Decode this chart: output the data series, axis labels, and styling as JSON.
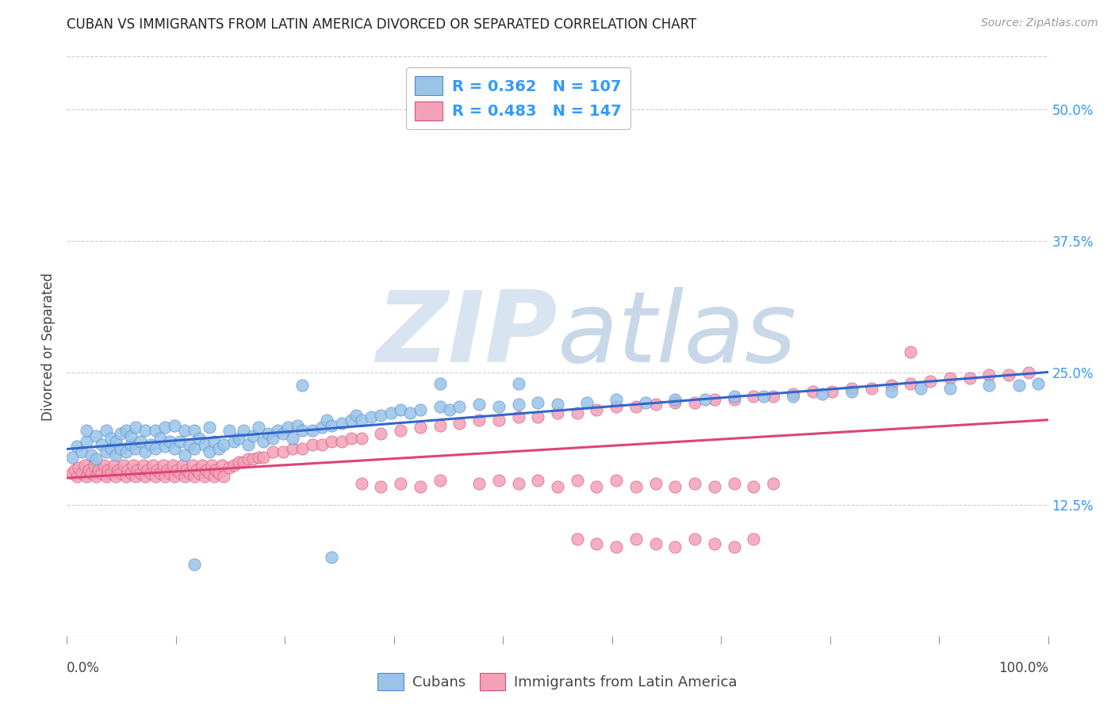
{
  "title": "CUBAN VS IMMIGRANTS FROM LATIN AMERICA DIVORCED OR SEPARATED CORRELATION CHART",
  "source": "Source: ZipAtlas.com",
  "ylabel": "Divorced or Separated",
  "xlim": [
    0.0,
    1.0
  ],
  "ylim": [
    0.0,
    0.55
  ],
  "yticks": [
    0.125,
    0.25,
    0.375,
    0.5
  ],
  "ytick_labels": [
    "12.5%",
    "25.0%",
    "37.5%",
    "50.0%"
  ],
  "legend_entry_blue": "R = 0.362   N = 107",
  "legend_entry_pink": "R = 0.483   N = 147",
  "legend_R_color": "#3399ff",
  "cubans_color": "#99c4e8",
  "cubans_edge": "#5588cc",
  "latin_color": "#f4a0b8",
  "latin_edge": "#cc5577",
  "trendline_blue": "#3366cc",
  "trendline_pink": "#dd4477",
  "watermark_zip": "ZIP",
  "watermark_atlas": "atlas",
  "watermark_color_zip": "#d8e4f0",
  "watermark_color_atlas": "#c8d8e8",
  "background_color": "#ffffff",
  "grid_color": "#cccccc",
  "title_color": "#222222",
  "source_color": "#999999",
  "ytick_color": "#3399ff",
  "label_color": "#444444",
  "bottom_tick_color": "#999999",
  "cubans_x": [
    0.005,
    0.01,
    0.015,
    0.02,
    0.02,
    0.025,
    0.03,
    0.03,
    0.035,
    0.04,
    0.04,
    0.045,
    0.045,
    0.05,
    0.05,
    0.055,
    0.055,
    0.06,
    0.06,
    0.065,
    0.065,
    0.07,
    0.07,
    0.075,
    0.08,
    0.08,
    0.085,
    0.09,
    0.09,
    0.095,
    0.1,
    0.1,
    0.105,
    0.11,
    0.11,
    0.115,
    0.12,
    0.12,
    0.125,
    0.13,
    0.13,
    0.135,
    0.14,
    0.145,
    0.145,
    0.15,
    0.155,
    0.16,
    0.165,
    0.17,
    0.175,
    0.18,
    0.185,
    0.19,
    0.195,
    0.2,
    0.205,
    0.21,
    0.215,
    0.22,
    0.225,
    0.23,
    0.235,
    0.24,
    0.25,
    0.26,
    0.265,
    0.27,
    0.28,
    0.29,
    0.295,
    0.3,
    0.31,
    0.32,
    0.33,
    0.34,
    0.35,
    0.36,
    0.38,
    0.39,
    0.4,
    0.42,
    0.44,
    0.46,
    0.48,
    0.5,
    0.53,
    0.56,
    0.59,
    0.62,
    0.65,
    0.68,
    0.71,
    0.74,
    0.77,
    0.8,
    0.84,
    0.87,
    0.9,
    0.94,
    0.97,
    0.99,
    0.13,
    0.24,
    0.27,
    0.38,
    0.46
  ],
  "cubans_y": [
    0.17,
    0.18,
    0.175,
    0.185,
    0.195,
    0.172,
    0.168,
    0.19,
    0.182,
    0.175,
    0.195,
    0.178,
    0.188,
    0.172,
    0.185,
    0.178,
    0.192,
    0.175,
    0.195,
    0.182,
    0.19,
    0.178,
    0.198,
    0.185,
    0.175,
    0.195,
    0.182,
    0.178,
    0.195,
    0.188,
    0.18,
    0.198,
    0.185,
    0.178,
    0.2,
    0.185,
    0.172,
    0.195,
    0.182,
    0.178,
    0.195,
    0.188,
    0.182,
    0.175,
    0.198,
    0.185,
    0.178,
    0.182,
    0.195,
    0.185,
    0.188,
    0.195,
    0.182,
    0.19,
    0.198,
    0.185,
    0.192,
    0.188,
    0.195,
    0.192,
    0.198,
    0.188,
    0.2,
    0.195,
    0.195,
    0.198,
    0.205,
    0.2,
    0.202,
    0.205,
    0.21,
    0.205,
    0.208,
    0.21,
    0.212,
    0.215,
    0.212,
    0.215,
    0.218,
    0.215,
    0.218,
    0.22,
    0.218,
    0.22,
    0.222,
    0.22,
    0.222,
    0.225,
    0.222,
    0.225,
    0.225,
    0.228,
    0.228,
    0.228,
    0.23,
    0.232,
    0.232,
    0.235,
    0.235,
    0.238,
    0.238,
    0.24,
    0.068,
    0.238,
    0.075,
    0.24,
    0.24
  ],
  "latin_x": [
    0.005,
    0.008,
    0.01,
    0.012,
    0.015,
    0.018,
    0.02,
    0.022,
    0.025,
    0.028,
    0.03,
    0.032,
    0.035,
    0.038,
    0.04,
    0.042,
    0.045,
    0.048,
    0.05,
    0.052,
    0.055,
    0.058,
    0.06,
    0.062,
    0.065,
    0.068,
    0.07,
    0.072,
    0.075,
    0.078,
    0.08,
    0.082,
    0.085,
    0.088,
    0.09,
    0.092,
    0.095,
    0.098,
    0.1,
    0.102,
    0.105,
    0.108,
    0.11,
    0.112,
    0.115,
    0.118,
    0.12,
    0.122,
    0.125,
    0.128,
    0.13,
    0.132,
    0.135,
    0.138,
    0.14,
    0.142,
    0.145,
    0.148,
    0.15,
    0.152,
    0.155,
    0.158,
    0.16,
    0.165,
    0.17,
    0.175,
    0.18,
    0.185,
    0.19,
    0.195,
    0.2,
    0.21,
    0.22,
    0.23,
    0.24,
    0.25,
    0.26,
    0.27,
    0.28,
    0.29,
    0.3,
    0.32,
    0.34,
    0.36,
    0.38,
    0.4,
    0.42,
    0.44,
    0.46,
    0.48,
    0.5,
    0.52,
    0.54,
    0.56,
    0.58,
    0.6,
    0.62,
    0.64,
    0.66,
    0.68,
    0.7,
    0.72,
    0.74,
    0.76,
    0.78,
    0.8,
    0.82,
    0.84,
    0.86,
    0.88,
    0.9,
    0.92,
    0.94,
    0.96,
    0.98,
    0.3,
    0.32,
    0.34,
    0.36,
    0.38,
    0.42,
    0.44,
    0.46,
    0.48,
    0.5,
    0.52,
    0.54,
    0.56,
    0.58,
    0.6,
    0.62,
    0.64,
    0.66,
    0.68,
    0.7,
    0.72,
    0.52,
    0.54,
    0.56,
    0.58,
    0.6,
    0.62,
    0.64,
    0.66,
    0.68,
    0.7,
    0.86
  ],
  "latin_y": [
    0.155,
    0.158,
    0.152,
    0.16,
    0.155,
    0.162,
    0.152,
    0.158,
    0.155,
    0.162,
    0.152,
    0.158,
    0.155,
    0.162,
    0.152,
    0.158,
    0.155,
    0.162,
    0.152,
    0.158,
    0.155,
    0.162,
    0.152,
    0.158,
    0.155,
    0.162,
    0.152,
    0.158,
    0.155,
    0.162,
    0.152,
    0.158,
    0.155,
    0.162,
    0.152,
    0.158,
    0.155,
    0.162,
    0.152,
    0.158,
    0.155,
    0.162,
    0.152,
    0.158,
    0.155,
    0.162,
    0.152,
    0.158,
    0.155,
    0.162,
    0.152,
    0.158,
    0.155,
    0.162,
    0.152,
    0.158,
    0.155,
    0.162,
    0.152,
    0.158,
    0.155,
    0.162,
    0.152,
    0.16,
    0.162,
    0.165,
    0.165,
    0.168,
    0.168,
    0.17,
    0.17,
    0.175,
    0.175,
    0.178,
    0.178,
    0.182,
    0.182,
    0.185,
    0.185,
    0.188,
    0.188,
    0.192,
    0.195,
    0.198,
    0.2,
    0.202,
    0.205,
    0.205,
    0.208,
    0.208,
    0.212,
    0.212,
    0.215,
    0.218,
    0.218,
    0.22,
    0.222,
    0.222,
    0.225,
    0.225,
    0.228,
    0.228,
    0.23,
    0.232,
    0.232,
    0.235,
    0.235,
    0.238,
    0.24,
    0.242,
    0.245,
    0.245,
    0.248,
    0.248,
    0.25,
    0.145,
    0.142,
    0.145,
    0.142,
    0.148,
    0.145,
    0.148,
    0.145,
    0.148,
    0.142,
    0.148,
    0.142,
    0.148,
    0.142,
    0.145,
    0.142,
    0.145,
    0.142,
    0.145,
    0.142,
    0.145,
    0.092,
    0.088,
    0.085,
    0.092,
    0.088,
    0.085,
    0.092,
    0.088,
    0.085,
    0.092,
    0.27
  ]
}
